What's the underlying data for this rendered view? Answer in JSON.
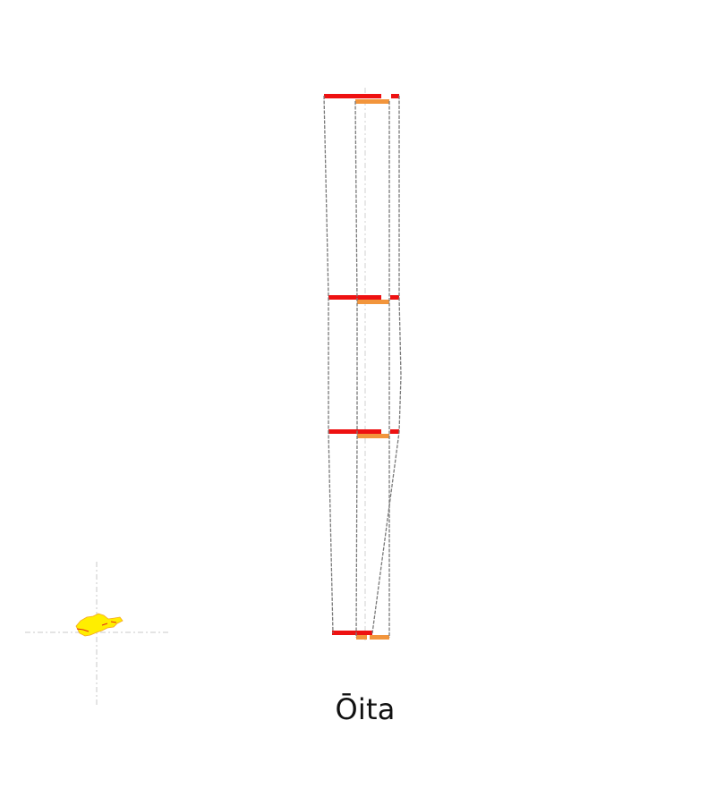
{
  "figure": {
    "title": "Ōita"
  },
  "colors": {
    "background": "#ffffff",
    "primary_bar": "#ee1111",
    "secondary_bar": "#f2953c",
    "outline": "#7a7a7a",
    "guide": "#d0d0d0",
    "locator_main": "#ffee00",
    "locator_edge": "#f5a623",
    "locator_guide": "#c8c8c8"
  },
  "icons": {
    "locator": "prefecture-locator-icon"
  }
}
